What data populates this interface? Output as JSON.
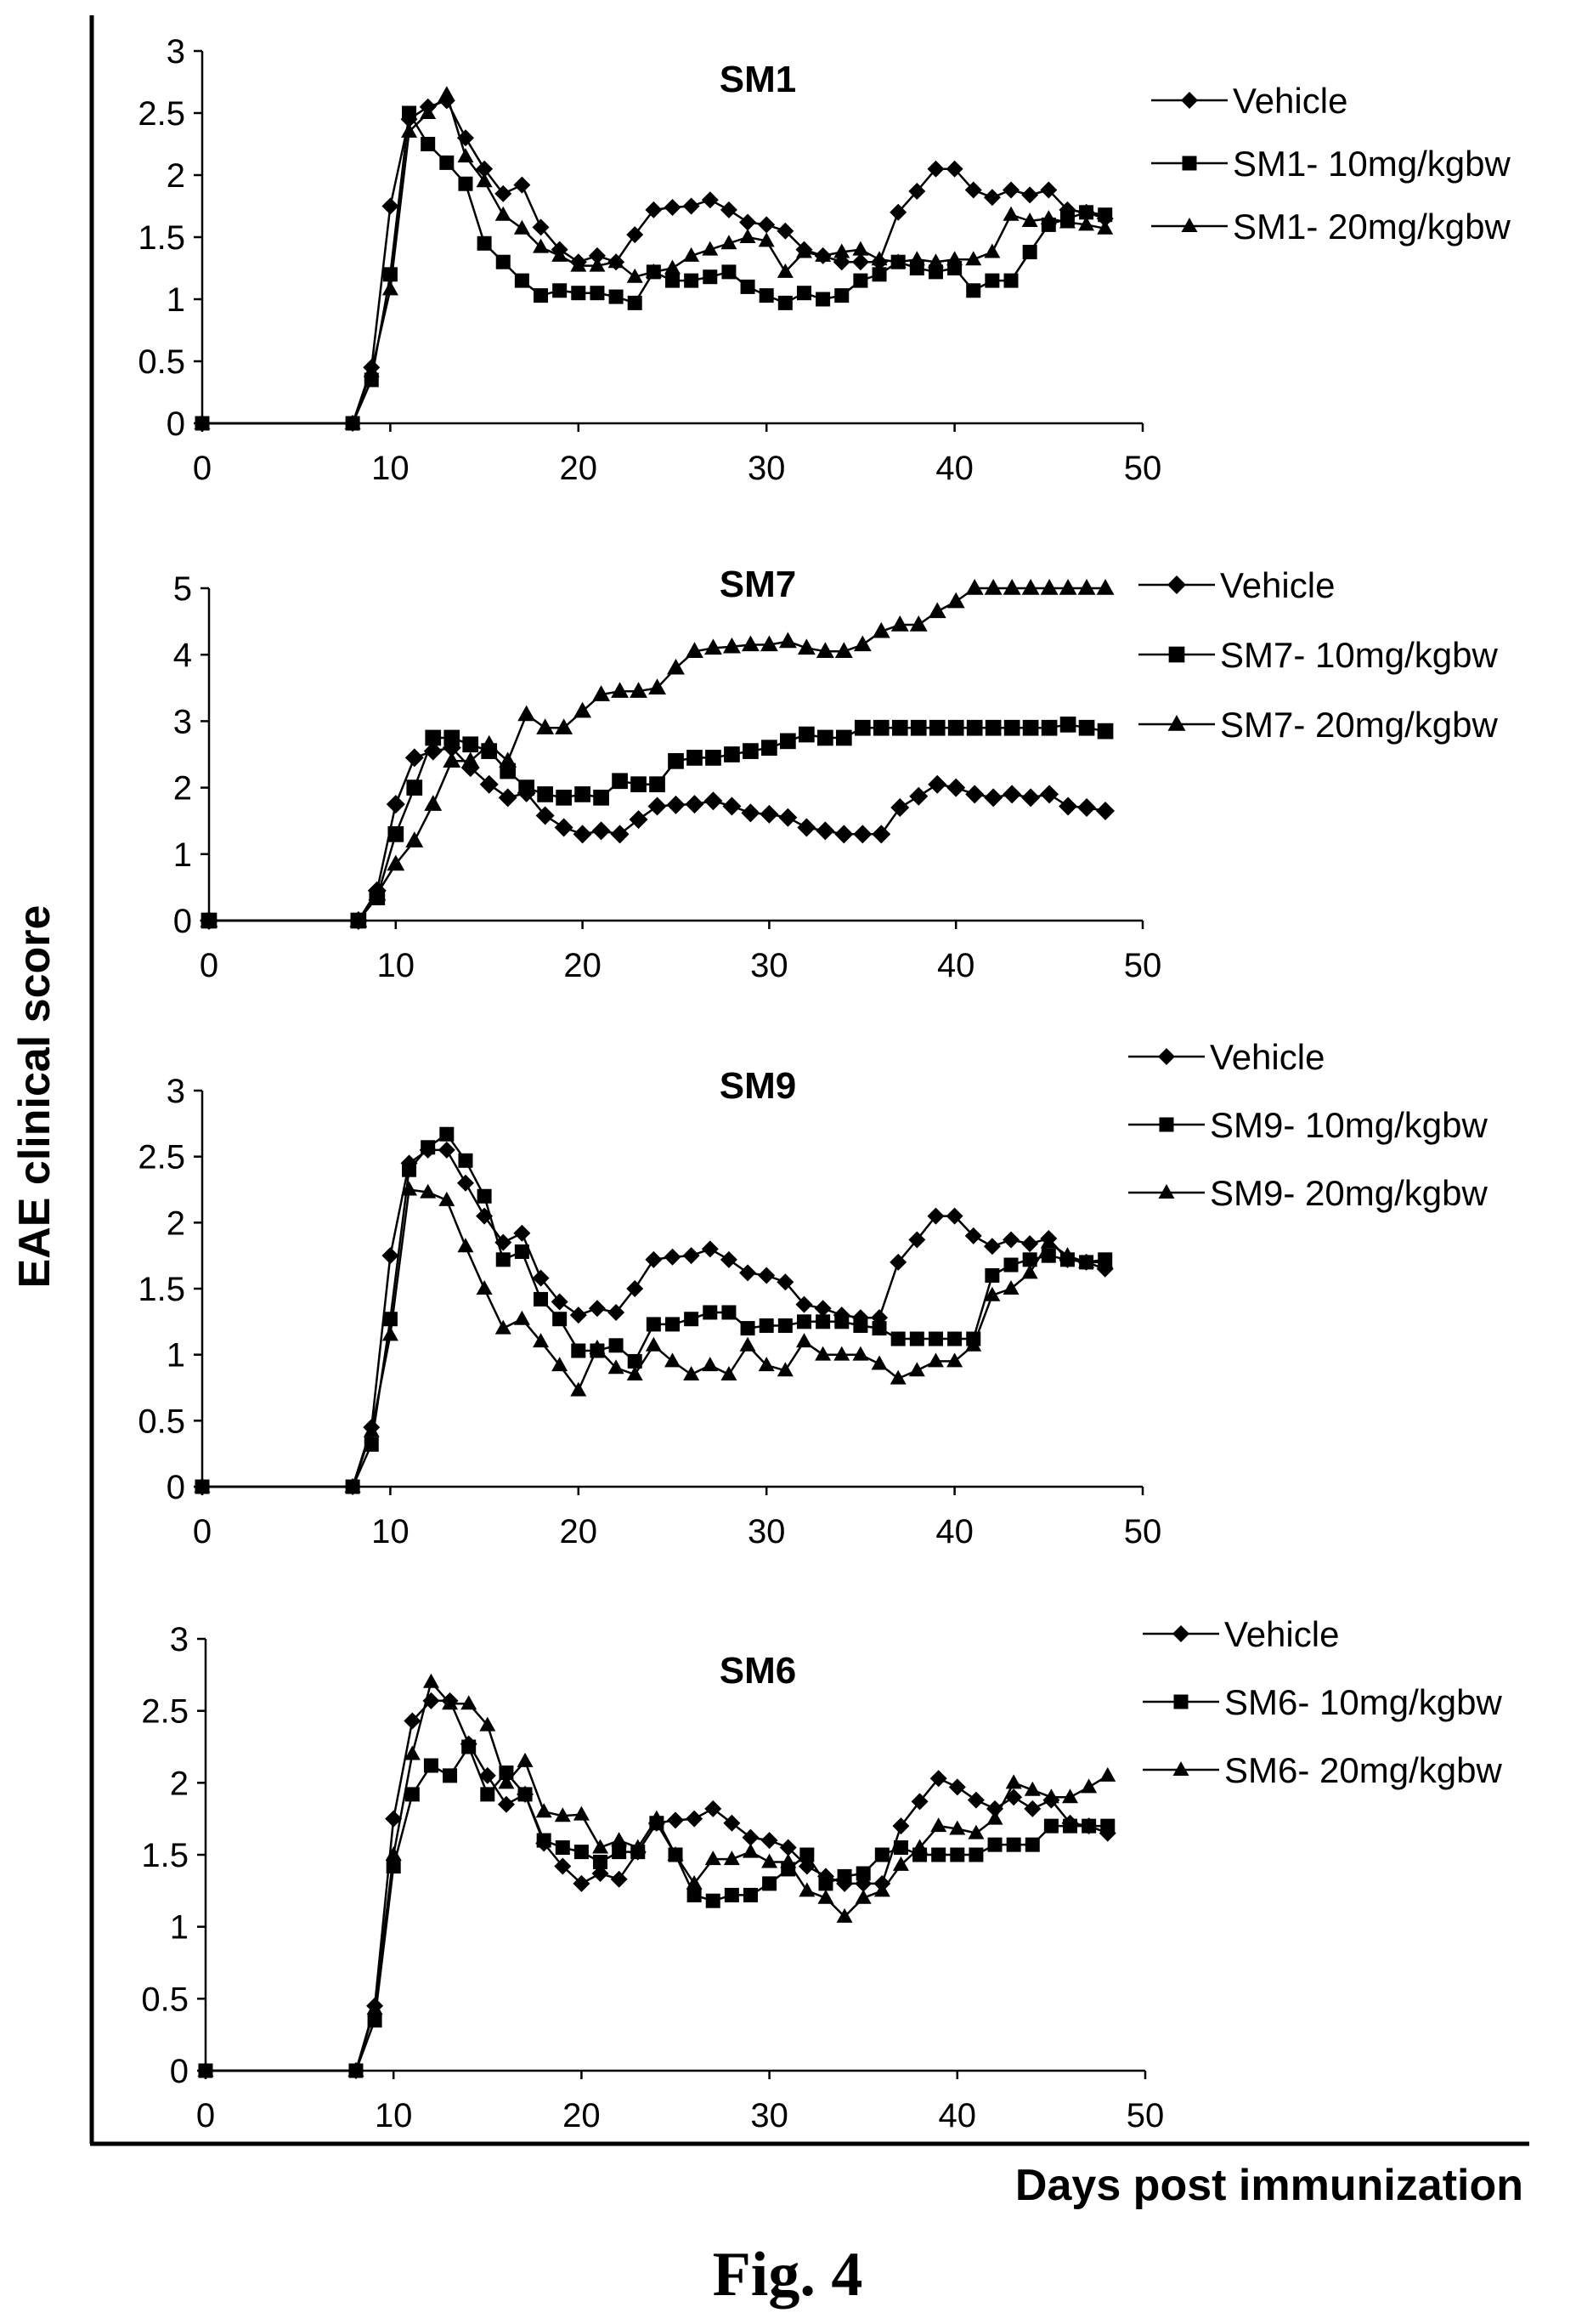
{
  "figure_caption": "Fig. 4",
  "ylabel": "EAE clinical score",
  "xlabel": "Days post immunization",
  "chart_data": [
    {
      "type": "line",
      "title": "SM1",
      "xlim": [
        0,
        50
      ],
      "ylim": [
        0,
        3
      ],
      "xticks": [
        "0",
        "10",
        "20",
        "30",
        "40",
        "50"
      ],
      "yticks": [
        "0",
        "0.5",
        "1",
        "1.5",
        "2",
        "2.5",
        "3"
      ],
      "x": [
        0,
        8,
        9,
        10,
        11,
        12,
        13,
        14,
        15,
        16,
        17,
        18,
        19,
        20,
        21,
        22,
        23,
        24,
        25,
        26,
        27,
        28,
        29,
        30,
        31,
        32,
        33,
        34,
        35,
        36,
        37,
        38,
        39,
        40,
        41,
        42,
        43,
        44,
        45,
        46,
        47,
        48
      ],
      "series": [
        {
          "name": "Vehicle",
          "marker": "diamond",
          "values": [
            0,
            0,
            0.45,
            1.75,
            2.45,
            2.55,
            2.6,
            2.3,
            2.05,
            1.85,
            1.92,
            1.58,
            1.4,
            1.3,
            1.35,
            1.3,
            1.52,
            1.72,
            1.74,
            1.75,
            1.8,
            1.72,
            1.62,
            1.6,
            1.55,
            1.4,
            1.35,
            1.3,
            1.3,
            1.3,
            1.7,
            1.87,
            2.05,
            2.05,
            1.88,
            1.82,
            1.88,
            1.84,
            1.88,
            1.72,
            1.7,
            1.65
          ]
        },
        {
          "name": "SM1- 10mg/kgbw",
          "marker": "square",
          "values": [
            0,
            0,
            0.35,
            1.2,
            2.5,
            2.25,
            2.1,
            1.93,
            1.45,
            1.3,
            1.15,
            1.03,
            1.07,
            1.05,
            1.05,
            1.02,
            0.97,
            1.22,
            1.15,
            1.15,
            1.18,
            1.22,
            1.1,
            1.03,
            0.97,
            1.05,
            1.0,
            1.03,
            1.15,
            1.2,
            1.3,
            1.25,
            1.22,
            1.25,
            1.07,
            1.15,
            1.15,
            1.38,
            1.6,
            1.65,
            1.7,
            1.68
          ]
        },
        {
          "name": "SM1- 20mg/kgbw",
          "marker": "triangle",
          "values": [
            0,
            0,
            0.42,
            1.08,
            2.35,
            2.5,
            2.65,
            2.15,
            1.95,
            1.68,
            1.57,
            1.42,
            1.35,
            1.27,
            1.27,
            1.3,
            1.18,
            1.22,
            1.25,
            1.35,
            1.4,
            1.45,
            1.5,
            1.47,
            1.22,
            1.38,
            1.35,
            1.38,
            1.4,
            1.32,
            1.3,
            1.32,
            1.3,
            1.32,
            1.32,
            1.38,
            1.68,
            1.63,
            1.65,
            1.62,
            1.6,
            1.57
          ]
        }
      ]
    },
    {
      "type": "line",
      "title": "SM7",
      "xlim": [
        0,
        50
      ],
      "ylim": [
        0,
        5
      ],
      "xticks": [
        "0",
        "10",
        "20",
        "30",
        "40",
        "50"
      ],
      "yticks": [
        "0",
        "1",
        "2",
        "3",
        "4",
        "5"
      ],
      "x": [
        0,
        8,
        9,
        10,
        11,
        12,
        13,
        14,
        15,
        16,
        17,
        18,
        19,
        20,
        21,
        22,
        23,
        24,
        25,
        26,
        27,
        28,
        29,
        30,
        31,
        32,
        33,
        34,
        35,
        36,
        37,
        38,
        39,
        40,
        41,
        42,
        43,
        44,
        45,
        46,
        47,
        48
      ],
      "series": [
        {
          "name": "Vehicle",
          "marker": "diamond",
          "values": [
            0,
            0,
            0.45,
            1.75,
            2.45,
            2.55,
            2.6,
            2.3,
            2.05,
            1.85,
            1.92,
            1.58,
            1.4,
            1.3,
            1.35,
            1.3,
            1.52,
            1.72,
            1.74,
            1.75,
            1.8,
            1.72,
            1.62,
            1.6,
            1.55,
            1.4,
            1.35,
            1.3,
            1.3,
            1.3,
            1.7,
            1.87,
            2.05,
            2.0,
            1.9,
            1.85,
            1.9,
            1.85,
            1.9,
            1.72,
            1.7,
            1.65
          ]
        },
        {
          "name": "SM7- 10mg/kgbw",
          "marker": "square",
          "values": [
            0,
            0,
            0.35,
            1.3,
            2.0,
            2.75,
            2.75,
            2.65,
            2.55,
            2.25,
            2.0,
            1.9,
            1.85,
            1.9,
            1.85,
            2.1,
            2.05,
            2.05,
            2.4,
            2.45,
            2.45,
            2.5,
            2.55,
            2.6,
            2.7,
            2.8,
            2.75,
            2.75,
            2.9,
            2.9,
            2.9,
            2.9,
            2.9,
            2.9,
            2.9,
            2.9,
            2.9,
            2.9,
            2.9,
            2.95,
            2.9,
            2.85
          ]
        },
        {
          "name": "SM7- 20mg/kgbw",
          "marker": "triangle",
          "values": [
            0,
            0,
            0.4,
            0.85,
            1.2,
            1.75,
            2.4,
            2.4,
            2.65,
            2.4,
            3.1,
            2.9,
            2.9,
            3.15,
            3.4,
            3.45,
            3.45,
            3.5,
            3.8,
            4.05,
            4.1,
            4.12,
            4.15,
            4.15,
            4.2,
            4.1,
            4.05,
            4.05,
            4.15,
            4.35,
            4.45,
            4.45,
            4.65,
            4.8,
            5.0,
            5.0,
            5.0,
            5.0,
            5.0,
            5.0,
            5.0,
            5.0
          ]
        }
      ]
    },
    {
      "type": "line",
      "title": "SM9",
      "xlim": [
        0,
        50
      ],
      "ylim": [
        0,
        3
      ],
      "xticks": [
        "0",
        "10",
        "20",
        "30",
        "40",
        "50"
      ],
      "yticks": [
        "0",
        "0.5",
        "1",
        "1.5",
        "2",
        "2.5",
        "3"
      ],
      "x": [
        0,
        8,
        9,
        10,
        11,
        12,
        13,
        14,
        15,
        16,
        17,
        18,
        19,
        20,
        21,
        22,
        23,
        24,
        25,
        26,
        27,
        28,
        29,
        30,
        31,
        32,
        33,
        34,
        35,
        36,
        37,
        38,
        39,
        40,
        41,
        42,
        43,
        44,
        45,
        46,
        47,
        48
      ],
      "series": [
        {
          "name": "Vehicle",
          "marker": "diamond",
          "values": [
            0,
            0,
            0.45,
            1.75,
            2.45,
            2.55,
            2.55,
            2.3,
            2.05,
            1.85,
            1.92,
            1.58,
            1.4,
            1.3,
            1.35,
            1.32,
            1.5,
            1.72,
            1.74,
            1.75,
            1.8,
            1.72,
            1.62,
            1.6,
            1.55,
            1.38,
            1.35,
            1.3,
            1.28,
            1.28,
            1.7,
            1.87,
            2.05,
            2.05,
            1.9,
            1.82,
            1.87,
            1.84,
            1.88,
            1.72,
            1.7,
            1.65
          ]
        },
        {
          "name": "SM9- 10mg/kgbw",
          "marker": "square",
          "values": [
            0,
            0,
            0.32,
            1.27,
            2.4,
            2.57,
            2.67,
            2.47,
            2.2,
            1.72,
            1.78,
            1.42,
            1.27,
            1.03,
            1.03,
            1.07,
            0.95,
            1.23,
            1.23,
            1.27,
            1.32,
            1.32,
            1.2,
            1.22,
            1.22,
            1.25,
            1.25,
            1.25,
            1.22,
            1.2,
            1.12,
            1.12,
            1.12,
            1.12,
            1.12,
            1.6,
            1.68,
            1.72,
            1.75,
            1.72,
            1.7,
            1.72
          ]
        },
        {
          "name": "SM9- 20mg/kgbw",
          "marker": "triangle",
          "values": [
            0,
            0,
            0.42,
            1.15,
            2.25,
            2.23,
            2.17,
            1.82,
            1.5,
            1.2,
            1.27,
            1.1,
            0.92,
            0.73,
            1.05,
            0.9,
            0.85,
            1.07,
            0.95,
            0.85,
            0.92,
            0.85,
            1.07,
            0.92,
            0.88,
            1.1,
            1.0,
            1.0,
            1.0,
            0.93,
            0.82,
            0.88,
            0.95,
            0.95,
            1.07,
            1.45,
            1.5,
            1.62,
            1.85,
            1.75,
            1.7,
            1.7
          ]
        }
      ]
    },
    {
      "type": "line",
      "title": "SM6",
      "xlim": [
        0,
        50
      ],
      "ylim": [
        0,
        3
      ],
      "xticks": [
        "0",
        "10",
        "20",
        "30",
        "40",
        "50"
      ],
      "yticks": [
        "0",
        "0.5",
        "1",
        "1.5",
        "2",
        "2.5",
        "3"
      ],
      "x": [
        0,
        8,
        9,
        10,
        11,
        12,
        13,
        14,
        15,
        16,
        17,
        18,
        19,
        20,
        21,
        22,
        23,
        24,
        25,
        26,
        27,
        28,
        29,
        30,
        31,
        32,
        33,
        34,
        35,
        36,
        37,
        38,
        39,
        40,
        41,
        42,
        43,
        44,
        45,
        46,
        47,
        48
      ],
      "series": [
        {
          "name": "Vehicle",
          "marker": "diamond",
          "values": [
            0,
            0,
            0.45,
            1.75,
            2.43,
            2.57,
            2.57,
            2.27,
            2.05,
            1.85,
            1.92,
            1.58,
            1.42,
            1.3,
            1.37,
            1.33,
            1.52,
            1.72,
            1.74,
            1.75,
            1.82,
            1.72,
            1.62,
            1.6,
            1.55,
            1.42,
            1.35,
            1.3,
            1.3,
            1.3,
            1.7,
            1.87,
            2.03,
            1.97,
            1.88,
            1.82,
            1.9,
            1.82,
            1.88,
            1.72,
            1.7,
            1.65
          ]
        },
        {
          "name": "SM6- 10mg/kgbw",
          "marker": "square",
          "values": [
            0,
            0,
            0.35,
            1.42,
            1.92,
            2.12,
            2.05,
            2.25,
            1.92,
            2.07,
            1.92,
            1.6,
            1.55,
            1.52,
            1.45,
            1.52,
            1.52,
            1.72,
            1.5,
            1.22,
            1.18,
            1.22,
            1.22,
            1.3,
            1.4,
            1.5,
            1.3,
            1.35,
            1.37,
            1.5,
            1.55,
            1.5,
            1.5,
            1.5,
            1.5,
            1.57,
            1.57,
            1.57,
            1.7,
            1.7,
            1.7,
            1.7
          ]
        },
        {
          "name": "SM6- 20mg/kgbw",
          "marker": "triangle",
          "values": [
            0,
            0,
            0.43,
            1.5,
            2.2,
            2.7,
            2.55,
            2.55,
            2.4,
            2.0,
            2.15,
            1.8,
            1.77,
            1.78,
            1.55,
            1.6,
            1.55,
            1.75,
            1.5,
            1.3,
            1.47,
            1.47,
            1.52,
            1.45,
            1.45,
            1.25,
            1.2,
            1.07,
            1.2,
            1.25,
            1.43,
            1.55,
            1.7,
            1.68,
            1.65,
            1.75,
            2.0,
            1.95,
            1.9,
            1.9,
            1.97,
            2.05
          ]
        }
      ]
    }
  ]
}
